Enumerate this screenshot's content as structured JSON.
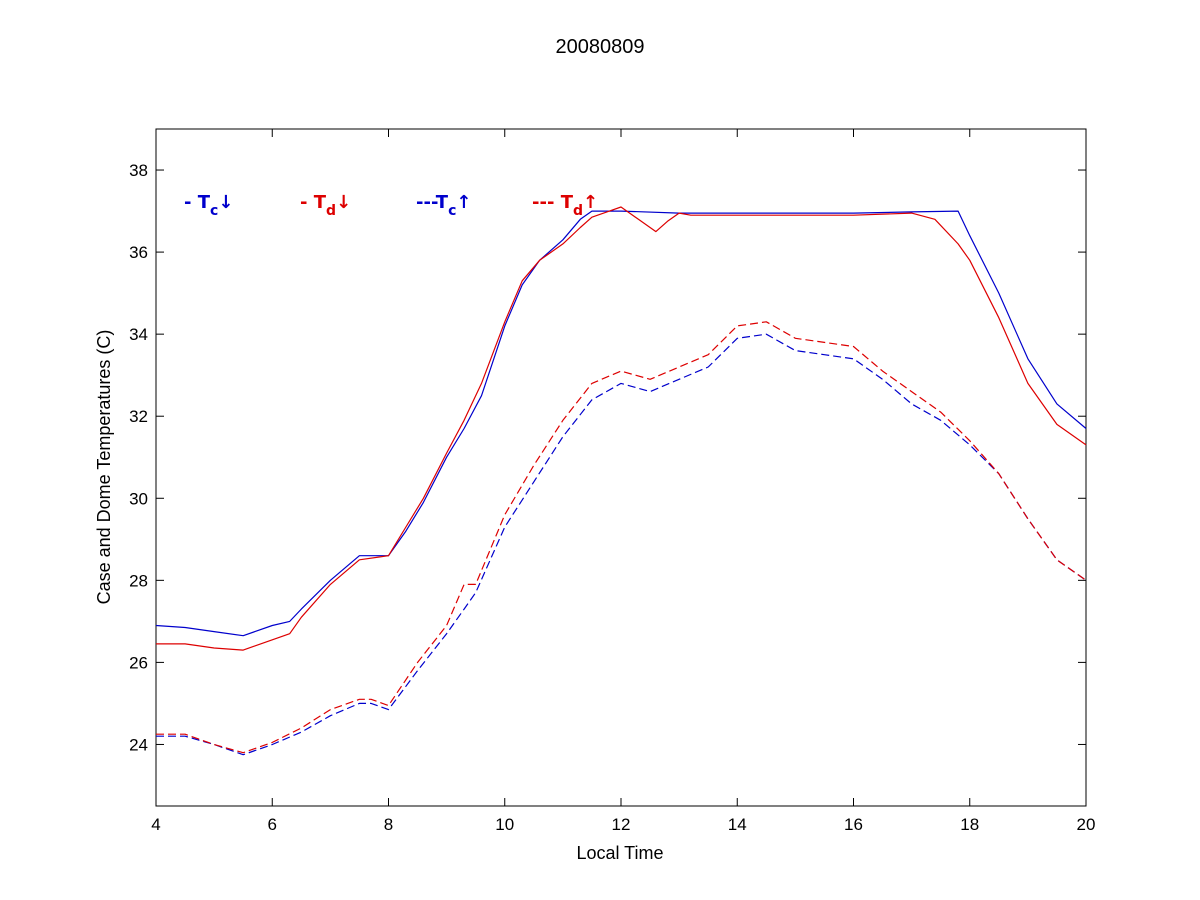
{
  "chart_data": {
    "type": "line",
    "title": "20080809",
    "xlabel": "Local Time",
    "ylabel": "Case and Dome Temperatures (C)",
    "xlim": [
      4,
      20
    ],
    "ylim": [
      22.5,
      39
    ],
    "xticks": [
      4,
      6,
      8,
      10,
      12,
      14,
      16,
      18,
      20
    ],
    "yticks": [
      24,
      26,
      28,
      30,
      32,
      34,
      36,
      38
    ],
    "grid": false,
    "legend_position": "top-left",
    "colors": {
      "blue": "#0000cc",
      "red": "#dd0000"
    },
    "series": [
      {
        "name": "- T_c↓",
        "legend_prefix": "- ",
        "symbol": "T",
        "subscript": "c",
        "arrow": "↓",
        "color": "#0000cc",
        "dash": "solid",
        "x": [
          4.0,
          4.5,
          5.0,
          5.5,
          6.0,
          6.3,
          6.5,
          7.0,
          7.5,
          8.0,
          8.3,
          8.6,
          9.0,
          9.3,
          9.6,
          10.0,
          10.3,
          10.6,
          11.0,
          11.3,
          11.5,
          12.0,
          13.0,
          14.0,
          15.0,
          16.0,
          17.0,
          17.8,
          18.0,
          18.5,
          19.0,
          19.5,
          20.0
        ],
        "y": [
          26.9,
          26.85,
          26.75,
          26.65,
          26.9,
          27.0,
          27.3,
          28.0,
          28.6,
          28.6,
          29.2,
          29.9,
          31.0,
          31.7,
          32.5,
          34.2,
          35.2,
          35.8,
          36.3,
          36.8,
          37.0,
          37.0,
          36.95,
          36.95,
          36.95,
          36.95,
          36.98,
          37.0,
          36.4,
          35.0,
          33.4,
          32.3,
          31.7
        ]
      },
      {
        "name": "- T_d↓",
        "legend_prefix": "- ",
        "symbol": "T",
        "subscript": "d",
        "arrow": "↓",
        "color": "#dd0000",
        "dash": "solid",
        "x": [
          4.0,
          4.5,
          5.0,
          5.5,
          6.0,
          6.3,
          6.5,
          7.0,
          7.5,
          8.0,
          8.3,
          8.6,
          9.0,
          9.3,
          9.6,
          10.0,
          10.3,
          10.6,
          11.0,
          11.3,
          11.5,
          11.8,
          12.0,
          12.3,
          12.6,
          12.8,
          13.0,
          13.2,
          13.5,
          14.0,
          15.0,
          16.0,
          17.0,
          17.4,
          17.8,
          18.0,
          18.5,
          19.0,
          19.5,
          20.0
        ],
        "y": [
          26.45,
          26.45,
          26.35,
          26.3,
          26.55,
          26.7,
          27.1,
          27.9,
          28.5,
          28.6,
          29.3,
          30.0,
          31.1,
          31.9,
          32.8,
          34.3,
          35.3,
          35.8,
          36.2,
          36.6,
          36.85,
          37.0,
          37.1,
          36.8,
          36.5,
          36.75,
          36.95,
          36.9,
          36.9,
          36.9,
          36.9,
          36.9,
          36.95,
          36.8,
          36.2,
          35.8,
          34.4,
          32.8,
          31.8,
          31.3
        ]
      },
      {
        "name": "---T_c↑",
        "legend_prefix": "---",
        "symbol": "T",
        "subscript": "c",
        "arrow": "↑",
        "color": "#0000cc",
        "dash": "dashed",
        "x": [
          4.0,
          4.5,
          5.0,
          5.5,
          6.0,
          6.5,
          7.0,
          7.5,
          7.7,
          8.0,
          8.5,
          9.0,
          9.3,
          9.5,
          10.0,
          10.5,
          11.0,
          11.5,
          12.0,
          12.5,
          13.0,
          13.5,
          14.0,
          14.5,
          15.0,
          15.5,
          16.0,
          16.5,
          17.0,
          17.5,
          18.0,
          18.5,
          19.0,
          19.5,
          20.0
        ],
        "y": [
          24.2,
          24.2,
          24.0,
          23.75,
          24.0,
          24.3,
          24.7,
          25.0,
          25.0,
          24.85,
          25.8,
          26.7,
          27.3,
          27.7,
          29.3,
          30.4,
          31.5,
          32.4,
          32.8,
          32.6,
          32.9,
          33.2,
          33.9,
          34.0,
          33.6,
          33.5,
          33.4,
          32.9,
          32.3,
          31.9,
          31.3,
          30.6,
          29.5,
          28.5,
          28.0
        ]
      },
      {
        "name": "--- T_d↑",
        "legend_prefix": "--- ",
        "symbol": "T",
        "subscript": "d",
        "arrow": "↑",
        "color": "#dd0000",
        "dash": "dashed",
        "x": [
          4.0,
          4.5,
          5.0,
          5.5,
          6.0,
          6.5,
          7.0,
          7.5,
          7.7,
          8.0,
          8.5,
          9.0,
          9.3,
          9.5,
          10.0,
          10.5,
          11.0,
          11.5,
          12.0,
          12.5,
          13.0,
          13.5,
          14.0,
          14.5,
          15.0,
          15.5,
          16.0,
          16.5,
          17.0,
          17.5,
          18.0,
          18.5,
          19.0,
          19.5,
          20.0
        ],
        "y": [
          24.25,
          24.25,
          24.0,
          23.8,
          24.05,
          24.4,
          24.85,
          25.1,
          25.1,
          24.95,
          26.0,
          26.9,
          27.9,
          27.9,
          29.6,
          30.8,
          31.9,
          32.8,
          33.1,
          32.9,
          33.2,
          33.5,
          34.2,
          34.3,
          33.9,
          33.8,
          33.7,
          33.1,
          32.6,
          32.1,
          31.4,
          30.6,
          29.5,
          28.5,
          28.0
        ]
      }
    ]
  }
}
